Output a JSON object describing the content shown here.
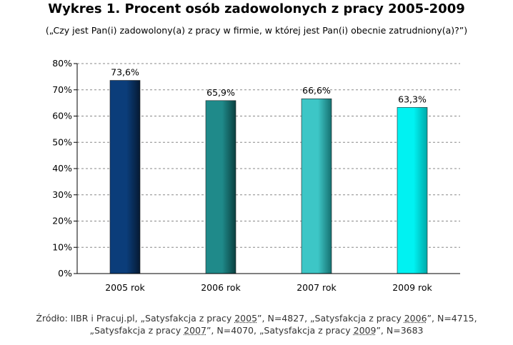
{
  "title": "Wykres 1. Procent osób zadowolonych z pracy 2005-2009",
  "subtitle": "(„Czy jest Pan(i) zadowolony(a) z pracy w firmie, w której jest Pan(i) obecnie zatrudniony(a)?”)",
  "source": {
    "line1_prefix": "Źródło: IIBR i Pracuj.pl, „Satysfakcja z pracy ",
    "line1_year1": "2005",
    "line1_mid": "”, N=4827, „Satysfakcja  z pracy ",
    "line1_year2": "2006",
    "line1_end": "”, N=4715,",
    "line2_prefix": "„Satysfakcja z pracy ",
    "line2_year1": "2007",
    "line2_mid": "”, N=4070, „Satysfakcja  z pracy ",
    "line2_year2": "2009",
    "line2_end": "”, N=3683"
  },
  "chart_data": {
    "type": "bar",
    "categories": [
      "2005 rok",
      "2006 rok",
      "2007 rok",
      "2009 rok"
    ],
    "values": [
      73.6,
      65.9,
      66.6,
      63.3
    ],
    "value_labels": [
      "73,6%",
      "65,9%",
      "66,6%",
      "63,3%"
    ],
    "yticks": [
      "0%",
      "10%",
      "20%",
      "30%",
      "40%",
      "50%",
      "60%",
      "70%",
      "80%"
    ],
    "ylim": [
      0,
      80
    ],
    "grid": true,
    "colors": [
      {
        "light": "#0b3d7a",
        "dark": "#061a33"
      },
      {
        "light": "#1f8a8a",
        "dark": "#0a3f3f"
      },
      {
        "light": "#3dc6c6",
        "dark": "#157070"
      },
      {
        "light": "#00f2f2",
        "dark": "#00a8a8"
      }
    ]
  }
}
